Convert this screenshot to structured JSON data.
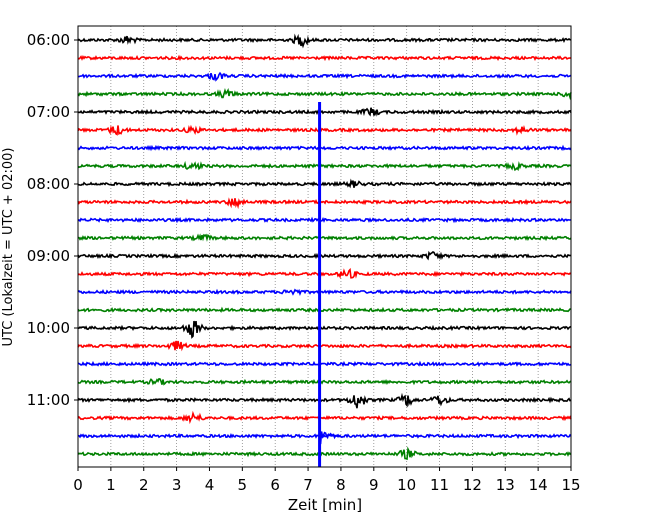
{
  "chart_data": {
    "type": "line",
    "title": "",
    "xlabel": "Zeit  [min]",
    "ylabel": "UTC (Lokalzeit = UTC + 02:00)",
    "xlim": [
      0,
      15
    ],
    "x_ticks": [
      "0",
      "1",
      "2",
      "3",
      "4",
      "5",
      "6",
      "7",
      "8",
      "9",
      "10",
      "11",
      "12",
      "13",
      "14",
      "15"
    ],
    "y_tick_labels": [
      "06:00",
      "07:00",
      "08:00",
      "09:00",
      "10:00",
      "11:00"
    ],
    "grid": "vertical dotted",
    "trace_interval_minutes": 15,
    "colors": [
      "#000000",
      "#ff0000",
      "#0000ff",
      "#008000"
    ],
    "traces": [
      {
        "start": "06:00",
        "color": "#000000",
        "events": [
          {
            "t": 1.5,
            "amp": 0.4
          },
          {
            "t": 6.8,
            "amp": 0.6
          }
        ]
      },
      {
        "start": "06:15",
        "color": "#ff0000",
        "events": []
      },
      {
        "start": "06:30",
        "color": "#0000ff",
        "events": [
          {
            "t": 4.2,
            "amp": 0.4
          }
        ]
      },
      {
        "start": "06:45",
        "color": "#008000",
        "events": [
          {
            "t": 4.5,
            "amp": 0.4
          },
          {
            "t": 15.0,
            "amp": 0.5
          }
        ]
      },
      {
        "start": "07:00",
        "color": "#000000",
        "events": [
          {
            "t": 8.9,
            "amp": 0.4
          }
        ]
      },
      {
        "start": "07:15",
        "color": "#ff0000",
        "events": [
          {
            "t": 1.2,
            "amp": 0.5
          },
          {
            "t": 3.5,
            "amp": 0.3
          },
          {
            "t": 13.5,
            "amp": 0.3
          }
        ]
      },
      {
        "start": "07:30",
        "color": "#0000ff",
        "events": []
      },
      {
        "start": "07:45",
        "color": "#008000",
        "events": [
          {
            "t": 3.5,
            "amp": 0.4
          },
          {
            "t": 13.3,
            "amp": 0.3
          }
        ]
      },
      {
        "start": "08:00",
        "color": "#000000",
        "events": [
          {
            "t": 8.4,
            "amp": 0.3
          }
        ]
      },
      {
        "start": "08:15",
        "color": "#ff0000",
        "events": [
          {
            "t": 4.8,
            "amp": 0.5
          }
        ]
      },
      {
        "start": "08:30",
        "color": "#0000ff",
        "events": []
      },
      {
        "start": "08:45",
        "color": "#008000",
        "events": [
          {
            "t": 3.8,
            "amp": 0.3
          }
        ]
      },
      {
        "start": "09:00",
        "color": "#000000",
        "events": [
          {
            "t": 10.8,
            "amp": 0.4
          }
        ]
      },
      {
        "start": "09:15",
        "color": "#ff0000",
        "events": [
          {
            "t": 8.2,
            "amp": 0.5
          }
        ]
      },
      {
        "start": "09:30",
        "color": "#0000ff",
        "events": [
          {
            "t": 6.5,
            "amp": 0.3
          }
        ]
      },
      {
        "start": "09:45",
        "color": "#008000",
        "events": []
      },
      {
        "start": "10:00",
        "color": "#000000",
        "events": [
          {
            "t": 3.5,
            "amp": 1.0
          }
        ]
      },
      {
        "start": "10:15",
        "color": "#ff0000",
        "events": [
          {
            "t": 3.0,
            "amp": 0.5
          }
        ]
      },
      {
        "start": "10:30",
        "color": "#0000ff",
        "events": []
      },
      {
        "start": "10:45",
        "color": "#008000",
        "events": [
          {
            "t": 2.4,
            "amp": 0.3
          }
        ]
      },
      {
        "start": "11:00",
        "color": "#000000",
        "events": [
          {
            "t": 8.5,
            "amp": 0.9
          },
          {
            "t": 10.0,
            "amp": 0.6
          },
          {
            "t": 11.0,
            "amp": 0.5
          }
        ]
      },
      {
        "start": "11:15",
        "color": "#ff0000",
        "events": [
          {
            "t": 3.5,
            "amp": 0.5
          }
        ]
      },
      {
        "start": "11:30",
        "color": "#0000ff",
        "events": []
      },
      {
        "start": "11:45",
        "color": "#008000",
        "events": [
          {
            "t": 10.0,
            "amp": 0.5
          }
        ]
      }
    ],
    "main_event": {
      "t": 7.35,
      "trace_start": "11:30",
      "color": "#0000ff",
      "extends_up_to": "07:00"
    }
  }
}
